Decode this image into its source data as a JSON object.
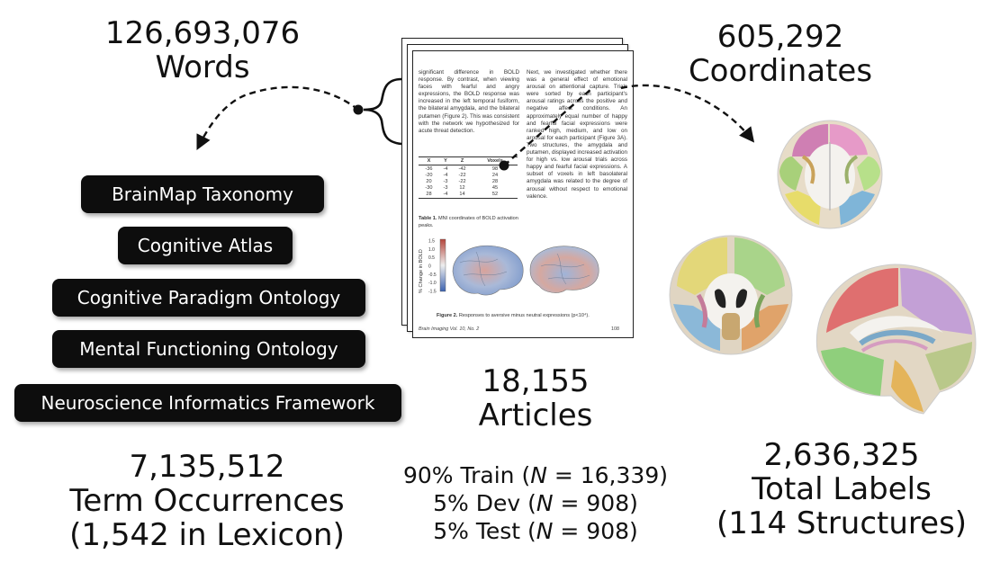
{
  "words": {
    "count": "126,693,076",
    "label": "Words"
  },
  "coordinates": {
    "count": "605,292",
    "label": "Coordinates"
  },
  "articles": {
    "count": "18,155",
    "label": "Articles"
  },
  "terms": {
    "count": "7,135,512",
    "label": "Term Occurrences",
    "sub": "(1,542 in Lexicon)"
  },
  "labels": {
    "count": "2,636,325",
    "label": "Total Labels",
    "sub": "(114 Structures)"
  },
  "ontologies": [
    "BrainMap Taxonomy",
    "Cognitive Atlas",
    "Cognitive Paradigm Ontology",
    "Mental Functioning Ontology",
    "Neuroscience Informatics Framework"
  ],
  "splits": {
    "train": {
      "pct": "90% Train (",
      "n": "N",
      "rest": " = 16,339)"
    },
    "dev": {
      "pct": "5% Dev (",
      "n": "N",
      "rest": " = 908)"
    },
    "test": {
      "pct": "5% Test (",
      "n": "N",
      "rest": " = 908)"
    }
  },
  "article_page": {
    "left_text": "significant difference in BOLD response. By contrast, when viewing faces with fearful and angry expressions, the BOLD response was increased in the left temporal fusiform, the bilateral amygdala, and the bilateral putamen (Figure 2). This was consistent with the network we hypothesized for acute threat detection.",
    "right_text": "Next, we investigated whether there was a general effect of emotional arousal on attentional capture. Trials were sorted by each participant's arousal ratings across the positive and negative affect conditions. An approximately equal number of happy and fearful facial expressions were ranked high, medium, and low on arousal for each participant (Figure 3A). Two structures, the amygdala and putamen, displayed increased activation for high vs. low arousal trials across happy and fearful facial expressions. A subset of voxels in left basolateral amygdala was related to the degree of arousal without respect to emotional valence.",
    "table": {
      "headers": [
        "X",
        "Y",
        "Z",
        "Voxels"
      ],
      "rows": [
        [
          "-36",
          "-4",
          "-42",
          "98"
        ],
        [
          "-20",
          "-4",
          "-22",
          "24"
        ],
        [
          "20",
          "-3",
          "-22",
          "28"
        ],
        [
          "-30",
          "-3",
          "12",
          "45"
        ],
        [
          "28",
          "-4",
          "14",
          "52"
        ]
      ]
    },
    "table_caption_bold": "Table 1.",
    "table_caption": " MNI coordinates of BOLD activation peaks.",
    "colorbar_label": "% Change in BOLD",
    "colorbar_ticks": [
      "1.5",
      "1.0",
      "0.5",
      "0",
      "-0.5",
      "-1.0",
      "-1.5"
    ],
    "figure_caption_bold": "Figure 2.",
    "figure_caption": " Responses to aversive minus neutral expressions (p<10⁴).",
    "journal": "Brain Imaging Vol. 10, No. 2",
    "page_number": "108"
  },
  "colors": {
    "pill_bg": "#0d0d0d",
    "pill_text": "#ffffff",
    "arrow": "#111111",
    "text": "#111111"
  }
}
